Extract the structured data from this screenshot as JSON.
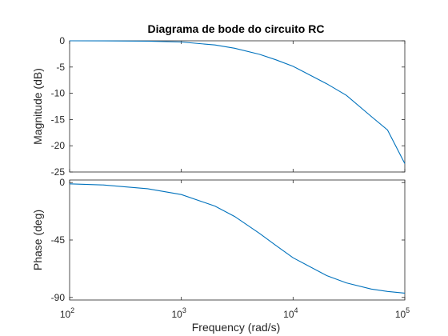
{
  "chart_data": {
    "type": "line",
    "title": "Diagrama de bode do circuito RC",
    "xlabel": "Frequency  (rad/s)",
    "xscale": "log",
    "xlim": [
      100,
      100000
    ],
    "xticks": [
      {
        "value": 100,
        "base": "10",
        "exp": "2"
      },
      {
        "value": 1000,
        "base": "10",
        "exp": "3"
      },
      {
        "value": 10000,
        "base": "10",
        "exp": "4"
      },
      {
        "value": 100000,
        "base": "10",
        "exp": "5"
      }
    ],
    "grid": false,
    "color": "#0072bd",
    "panels": [
      {
        "name": "magnitude",
        "ylabel": "Magnitude (dB)",
        "ylim": [
          -25,
          0
        ],
        "yticks": [
          {
            "value": 0,
            "label": "0"
          },
          {
            "value": -5,
            "label": "-5"
          },
          {
            "value": -10,
            "label": "-10"
          },
          {
            "value": -15,
            "label": "-15"
          },
          {
            "value": -20,
            "label": "-20"
          },
          {
            "value": -25,
            "label": "-25"
          }
        ],
        "x": [
          100,
          200,
          500,
          1000,
          2000,
          3000,
          5000,
          7000,
          10000,
          20000,
          30000,
          50000,
          70000,
          100000
        ],
        "y": [
          0.0,
          -0.01,
          -0.06,
          -0.23,
          -0.79,
          -1.42,
          -2.58,
          -3.62,
          -4.87,
          -8.18,
          -10.4,
          -14.4,
          -17.0,
          -23.4
        ]
      },
      {
        "name": "phase",
        "ylabel": "Phase (deg)",
        "ylim": [
          -92,
          2
        ],
        "yticks": [
          {
            "value": 0,
            "label": "0"
          },
          {
            "value": -45,
            "label": "-45"
          },
          {
            "value": -90,
            "label": "-90"
          }
        ],
        "x": [
          100,
          200,
          500,
          1000,
          2000,
          3000,
          5000,
          7000,
          10000,
          20000,
          30000,
          50000,
          70000,
          100000
        ],
        "y": [
          -1.0,
          -1.9,
          -4.8,
          -9.4,
          -18.4,
          -26.6,
          -39.8,
          -49.2,
          -58.9,
          -72.9,
          -78.6,
          -83.4,
          -85.3,
          -86.6
        ]
      }
    ]
  }
}
